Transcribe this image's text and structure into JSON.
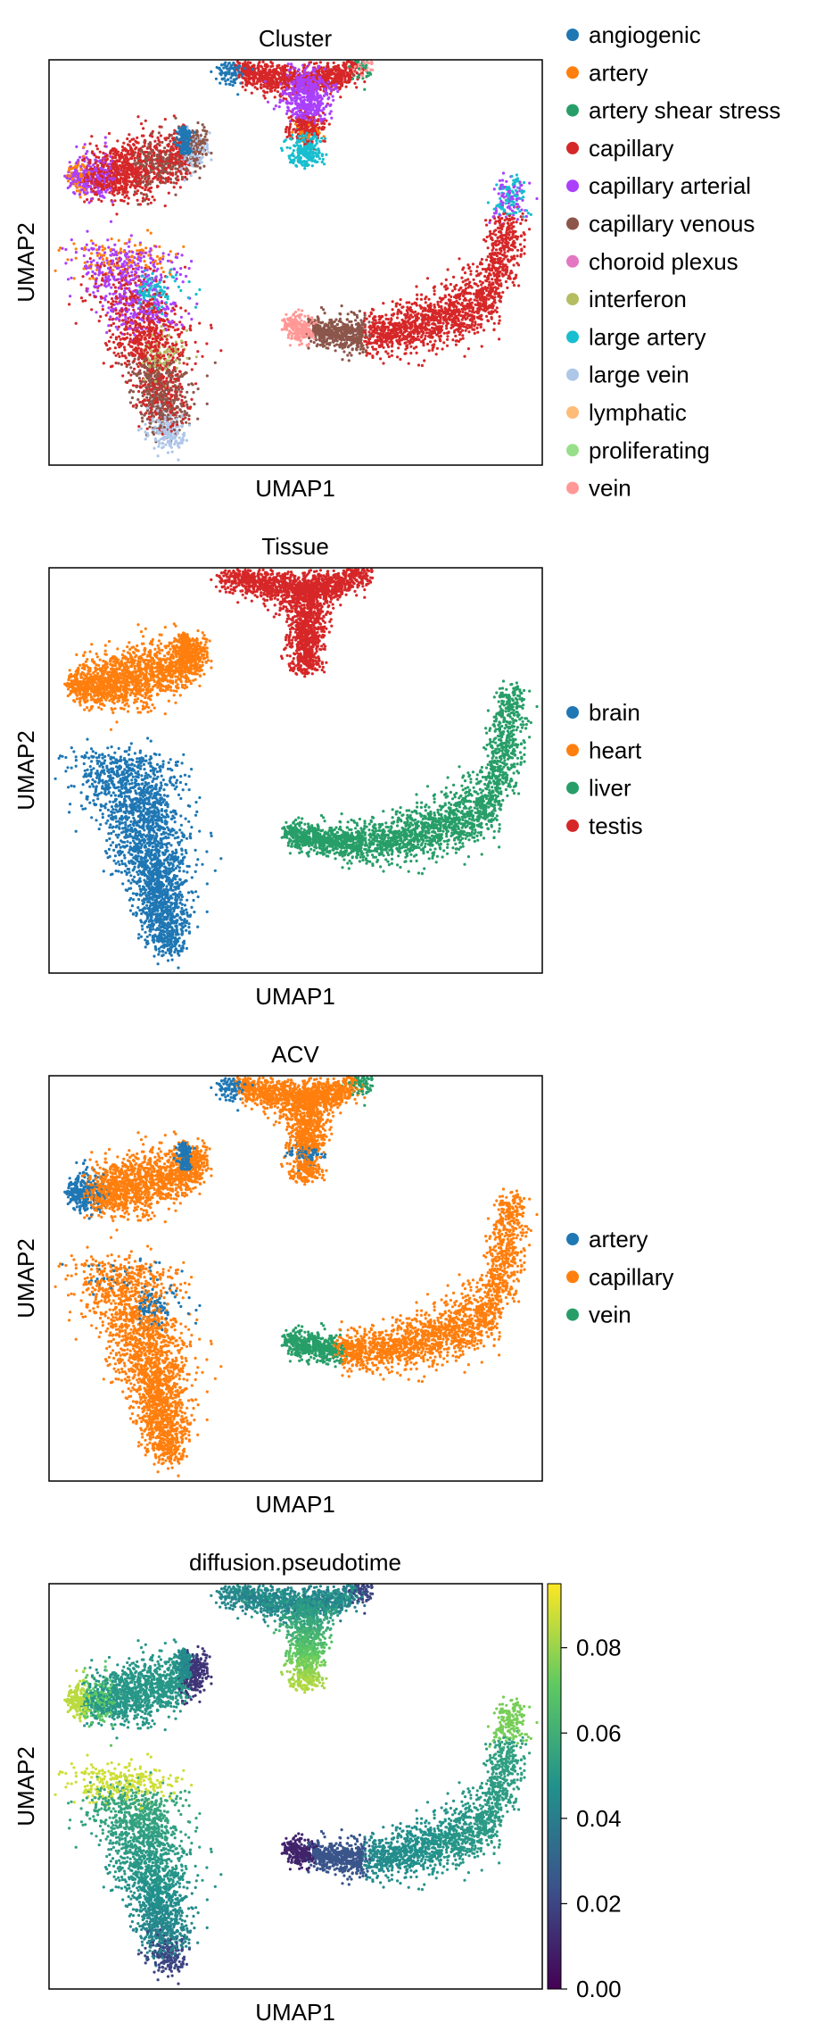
{
  "figure": {
    "panels": [
      {
        "id": "cluster",
        "title": "Cluster",
        "xlabel": "UMAP1",
        "ylabel": "UMAP2",
        "legend": [
          "angiogenic",
          "artery",
          "artery shear stress",
          "capillary",
          "capillary arterial",
          "capillary venous",
          "choroid plexus",
          "interferon",
          "large artery",
          "large vein",
          "lymphatic",
          "proliferating",
          "vein"
        ],
        "legend_colors": [
          "#1f77b4",
          "#ff7f0e",
          "#279e68",
          "#d62728",
          "#aa40fc",
          "#8c564b",
          "#e377c2",
          "#b5bd61",
          "#17becf",
          "#aec7e8",
          "#ffbb78",
          "#98df8a",
          "#ff9896"
        ]
      },
      {
        "id": "tissue",
        "title": "Tissue",
        "xlabel": "UMAP1",
        "ylabel": "UMAP2",
        "legend": [
          "brain",
          "heart",
          "liver",
          "testis"
        ],
        "legend_colors": [
          "#1f77b4",
          "#ff7f0e",
          "#279e68",
          "#d62728"
        ]
      },
      {
        "id": "acv",
        "title": "ACV",
        "xlabel": "UMAP1",
        "ylabel": "UMAP2",
        "legend": [
          "artery",
          "capillary",
          "vein"
        ],
        "legend_colors": [
          "#1f77b4",
          "#ff7f0e",
          "#279e68"
        ]
      },
      {
        "id": "pseudotime",
        "title": "diffusion.pseudotime",
        "xlabel": "UMAP1",
        "ylabel": "UMAP2",
        "colorbar_ticks": [
          "0.00",
          "0.02",
          "0.04",
          "0.06",
          "0.08"
        ],
        "colorbar_colors": [
          "#440154",
          "#3b528b",
          "#21918c",
          "#5ec962",
          "#fde725"
        ]
      }
    ]
  },
  "chart_data": [
    {
      "type": "scatter",
      "title": "Cluster",
      "xlabel": "UMAP1",
      "ylabel": "UMAP2",
      "legend_placement": "right",
      "grid": false,
      "series": [
        {
          "name": "angiogenic",
          "color": "#1f77b4"
        },
        {
          "name": "artery",
          "color": "#ff7f0e"
        },
        {
          "name": "artery shear stress",
          "color": "#279e68"
        },
        {
          "name": "capillary",
          "color": "#d62728"
        },
        {
          "name": "capillary arterial",
          "color": "#aa40fc"
        },
        {
          "name": "capillary venous",
          "color": "#8c564b"
        },
        {
          "name": "choroid plexus",
          "color": "#e377c2"
        },
        {
          "name": "interferon",
          "color": "#b5bd61"
        },
        {
          "name": "large artery",
          "color": "#17becf"
        },
        {
          "name": "large vein",
          "color": "#aec7e8"
        },
        {
          "name": "lymphatic",
          "color": "#ffbb78"
        },
        {
          "name": "proliferating",
          "color": "#98df8a"
        },
        {
          "name": "vein",
          "color": "#ff9896"
        }
      ]
    },
    {
      "type": "scatter",
      "title": "Tissue",
      "xlabel": "UMAP1",
      "ylabel": "UMAP2",
      "legend_placement": "right",
      "grid": false,
      "series": [
        {
          "name": "brain",
          "color": "#1f77b4"
        },
        {
          "name": "heart",
          "color": "#ff7f0e"
        },
        {
          "name": "liver",
          "color": "#279e68"
        },
        {
          "name": "testis",
          "color": "#d62728"
        }
      ]
    },
    {
      "type": "scatter",
      "title": "ACV",
      "xlabel": "UMAP1",
      "ylabel": "UMAP2",
      "legend_placement": "right",
      "grid": false,
      "series": [
        {
          "name": "artery",
          "color": "#1f77b4"
        },
        {
          "name": "capillary",
          "color": "#ff7f0e"
        },
        {
          "name": "vein",
          "color": "#279e68"
        }
      ]
    },
    {
      "type": "scatter",
      "title": "diffusion.pseudotime",
      "xlabel": "UMAP1",
      "ylabel": "UMAP2",
      "colormap": "viridis",
      "colorbar_range": [
        0.0,
        0.095
      ],
      "colorbar_ticks": [
        0.0,
        0.02,
        0.04,
        0.06,
        0.08
      ],
      "grid": false
    }
  ]
}
